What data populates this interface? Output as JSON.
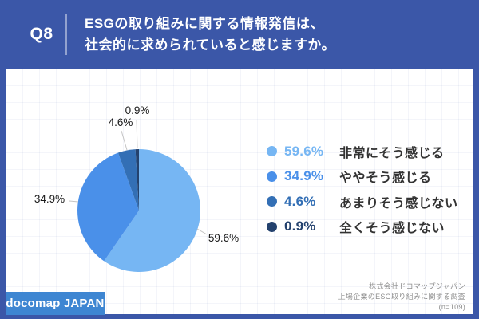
{
  "header": {
    "question_number": "Q8",
    "question_line1": "ESGの取り組みに関する情報発信は、",
    "question_line2": "社会的に求められていると感じますか。"
  },
  "chart_data": {
    "type": "pie",
    "start_angle_deg": 0,
    "direction": "clockwise",
    "legend_position": "right",
    "slices": [
      {
        "label": "非常にそう感じる",
        "value": 59.6,
        "pct_label": "59.6%",
        "color": "#76B6F3"
      },
      {
        "label": "ややそう感じる",
        "value": 34.9,
        "pct_label": "34.9%",
        "color": "#4A90E9"
      },
      {
        "label": "あまりそう感じない",
        "value": 4.6,
        "pct_label": "4.6%",
        "color": "#336FB5"
      },
      {
        "label": "全くそう感じない",
        "value": 0.9,
        "pct_label": "0.9%",
        "color": "#24426E"
      }
    ]
  },
  "footer": {
    "logo_text": "docomap JAPAN",
    "source_lines": [
      "株式会社ドコマップジャパン",
      "上場企業のESG取り組みに関する調査",
      "(n=109)"
    ]
  },
  "colors": {
    "frame_blue": "#3B57A8",
    "badge_blue": "#3E86D2",
    "leader_line": "#C4C4C4"
  }
}
